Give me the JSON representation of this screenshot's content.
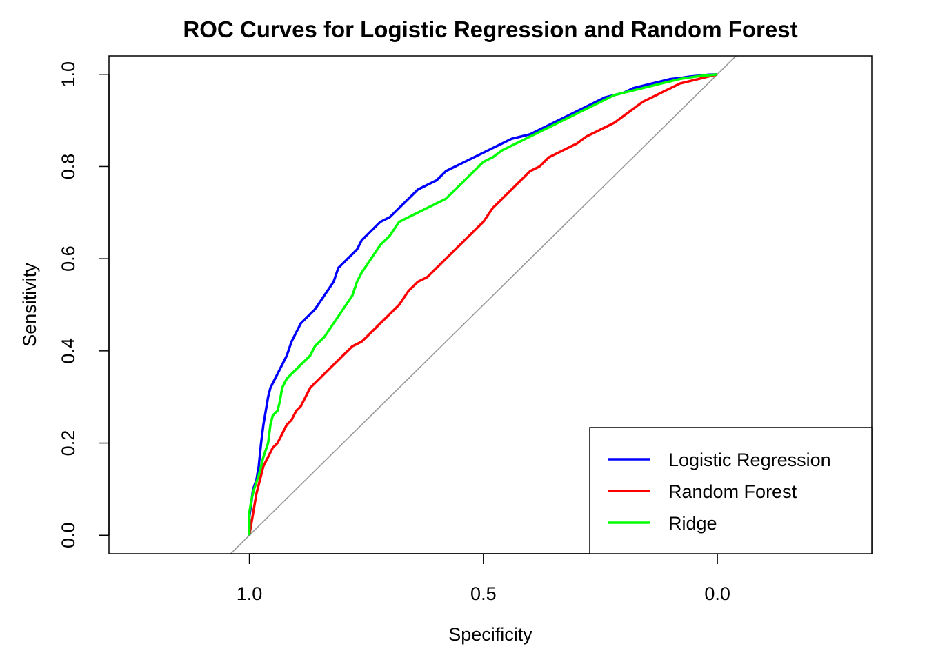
{
  "chart_data": {
    "type": "line",
    "title": "ROC Curves for Logistic Regression and Random Forest",
    "xlabel": "Specificity",
    "ylabel": "Sensitivity",
    "x_reversed": true,
    "xlim": [
      1.3,
      -0.33
    ],
    "ylim": [
      -0.04,
      1.04
    ],
    "x_ticks": [
      1.0,
      0.5,
      0.0
    ],
    "x_tick_labels": [
      "1.0",
      "0.5",
      "0.0"
    ],
    "y_ticks": [
      0.0,
      0.2,
      0.4,
      0.6,
      0.8,
      1.0
    ],
    "y_tick_labels": [
      "0.0",
      "0.2",
      "0.4",
      "0.6",
      "0.8",
      "1.0"
    ],
    "grid": false,
    "legend_position": "bottom-right",
    "reference_line": {
      "color": "#999999",
      "x": [
        1.0,
        0.0
      ],
      "y": [
        0.0,
        1.0
      ]
    },
    "series": [
      {
        "name": "Logistic Regression",
        "color": "#0000ff",
        "x": [
          1.0,
          1.0,
          0.992,
          0.985,
          0.98,
          0.975,
          0.97,
          0.965,
          0.96,
          0.955,
          0.95,
          0.945,
          0.94,
          0.93,
          0.92,
          0.91,
          0.9,
          0.89,
          0.88,
          0.87,
          0.86,
          0.84,
          0.82,
          0.81,
          0.8,
          0.79,
          0.77,
          0.76,
          0.74,
          0.72,
          0.7,
          0.68,
          0.66,
          0.64,
          0.62,
          0.6,
          0.58,
          0.56,
          0.54,
          0.52,
          0.5,
          0.48,
          0.46,
          0.44,
          0.42,
          0.4,
          0.38,
          0.36,
          0.34,
          0.32,
          0.3,
          0.28,
          0.26,
          0.24,
          0.22,
          0.2,
          0.18,
          0.16,
          0.14,
          0.12,
          0.1,
          0.08,
          0.06,
          0.04,
          0.02,
          0.0
        ],
        "y": [
          0.0,
          0.04,
          0.1,
          0.12,
          0.15,
          0.2,
          0.24,
          0.27,
          0.3,
          0.32,
          0.33,
          0.34,
          0.35,
          0.37,
          0.39,
          0.42,
          0.44,
          0.46,
          0.47,
          0.48,
          0.49,
          0.52,
          0.55,
          0.58,
          0.59,
          0.6,
          0.62,
          0.64,
          0.66,
          0.68,
          0.69,
          0.71,
          0.73,
          0.75,
          0.76,
          0.77,
          0.79,
          0.8,
          0.81,
          0.82,
          0.83,
          0.84,
          0.85,
          0.86,
          0.865,
          0.87,
          0.88,
          0.89,
          0.9,
          0.91,
          0.92,
          0.93,
          0.94,
          0.95,
          0.955,
          0.96,
          0.97,
          0.975,
          0.98,
          0.985,
          0.99,
          0.992,
          0.995,
          0.997,
          0.999,
          1.0
        ]
      },
      {
        "name": "Random Forest",
        "color": "#ff0000",
        "x": [
          1.0,
          0.995,
          0.99,
          0.985,
          0.98,
          0.975,
          0.97,
          0.965,
          0.96,
          0.95,
          0.94,
          0.93,
          0.92,
          0.91,
          0.9,
          0.89,
          0.88,
          0.87,
          0.86,
          0.85,
          0.84,
          0.82,
          0.8,
          0.78,
          0.76,
          0.74,
          0.72,
          0.7,
          0.68,
          0.66,
          0.64,
          0.62,
          0.6,
          0.58,
          0.56,
          0.54,
          0.52,
          0.5,
          0.48,
          0.46,
          0.44,
          0.42,
          0.4,
          0.38,
          0.36,
          0.34,
          0.32,
          0.3,
          0.28,
          0.26,
          0.24,
          0.22,
          0.2,
          0.18,
          0.16,
          0.14,
          0.12,
          0.1,
          0.08,
          0.06,
          0.04,
          0.02,
          0.0
        ],
        "y": [
          0.0,
          0.03,
          0.06,
          0.09,
          0.11,
          0.13,
          0.15,
          0.16,
          0.17,
          0.19,
          0.2,
          0.22,
          0.24,
          0.25,
          0.27,
          0.28,
          0.3,
          0.32,
          0.33,
          0.34,
          0.35,
          0.37,
          0.39,
          0.41,
          0.42,
          0.44,
          0.46,
          0.48,
          0.5,
          0.53,
          0.55,
          0.56,
          0.58,
          0.6,
          0.62,
          0.64,
          0.66,
          0.68,
          0.71,
          0.73,
          0.75,
          0.77,
          0.79,
          0.8,
          0.82,
          0.83,
          0.84,
          0.85,
          0.865,
          0.875,
          0.885,
          0.895,
          0.91,
          0.925,
          0.94,
          0.95,
          0.96,
          0.97,
          0.98,
          0.985,
          0.99,
          0.995,
          1.0
        ]
      },
      {
        "name": "Ridge",
        "color": "#00ff00",
        "x": [
          1.0,
          1.0,
          0.995,
          0.99,
          0.98,
          0.975,
          0.97,
          0.96,
          0.955,
          0.95,
          0.94,
          0.935,
          0.93,
          0.92,
          0.91,
          0.9,
          0.89,
          0.88,
          0.87,
          0.86,
          0.84,
          0.82,
          0.8,
          0.78,
          0.77,
          0.76,
          0.74,
          0.72,
          0.7,
          0.68,
          0.66,
          0.64,
          0.62,
          0.6,
          0.58,
          0.56,
          0.54,
          0.52,
          0.5,
          0.48,
          0.46,
          0.44,
          0.42,
          0.4,
          0.38,
          0.36,
          0.34,
          0.32,
          0.3,
          0.28,
          0.26,
          0.24,
          0.22,
          0.2,
          0.18,
          0.16,
          0.14,
          0.12,
          0.1,
          0.08,
          0.06,
          0.04,
          0.02,
          0.0
        ],
        "y": [
          0.0,
          0.05,
          0.08,
          0.1,
          0.13,
          0.15,
          0.17,
          0.2,
          0.24,
          0.26,
          0.27,
          0.29,
          0.32,
          0.34,
          0.35,
          0.36,
          0.37,
          0.38,
          0.39,
          0.41,
          0.43,
          0.46,
          0.49,
          0.52,
          0.55,
          0.57,
          0.6,
          0.63,
          0.65,
          0.68,
          0.69,
          0.7,
          0.71,
          0.72,
          0.73,
          0.75,
          0.77,
          0.79,
          0.81,
          0.82,
          0.835,
          0.845,
          0.855,
          0.865,
          0.875,
          0.885,
          0.895,
          0.905,
          0.915,
          0.925,
          0.935,
          0.945,
          0.955,
          0.96,
          0.965,
          0.97,
          0.975,
          0.98,
          0.985,
          0.99,
          0.993,
          0.996,
          0.998,
          1.0
        ]
      }
    ]
  }
}
